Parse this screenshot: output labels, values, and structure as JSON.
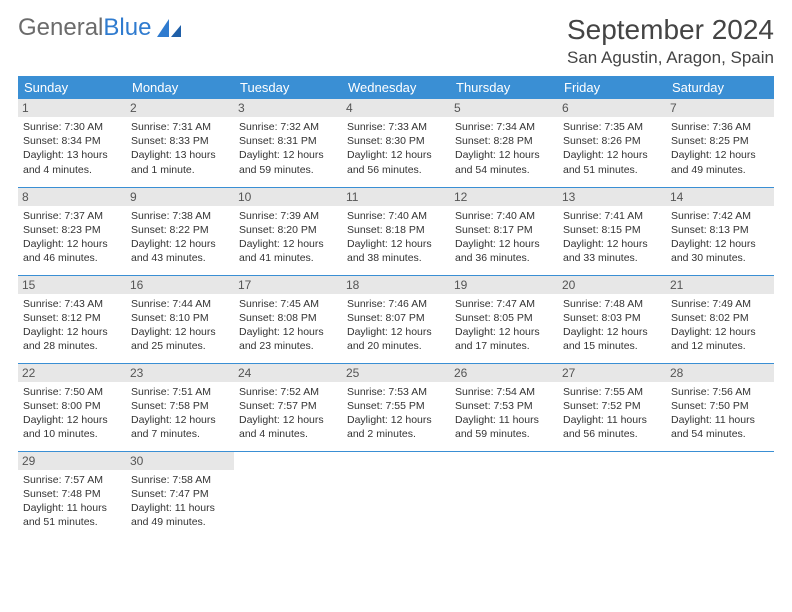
{
  "branding": {
    "text1": "General",
    "text2": "Blue"
  },
  "header": {
    "title": "September 2024",
    "location": "San Agustin, Aragon, Spain"
  },
  "colors": {
    "header_bg": "#3a8fd4",
    "header_text": "#ffffff",
    "daynum_bg": "#e7e7e7",
    "border": "#3a8fd4",
    "logo_gray": "#6b6b6b",
    "logo_blue": "#2f7bcf"
  },
  "weekdays": [
    "Sunday",
    "Monday",
    "Tuesday",
    "Wednesday",
    "Thursday",
    "Friday",
    "Saturday"
  ],
  "days": [
    {
      "n": "1",
      "sr": "Sunrise: 7:30 AM",
      "ss": "Sunset: 8:34 PM",
      "d1": "Daylight: 13 hours",
      "d2": "and 4 minutes."
    },
    {
      "n": "2",
      "sr": "Sunrise: 7:31 AM",
      "ss": "Sunset: 8:33 PM",
      "d1": "Daylight: 13 hours",
      "d2": "and 1 minute."
    },
    {
      "n": "3",
      "sr": "Sunrise: 7:32 AM",
      "ss": "Sunset: 8:31 PM",
      "d1": "Daylight: 12 hours",
      "d2": "and 59 minutes."
    },
    {
      "n": "4",
      "sr": "Sunrise: 7:33 AM",
      "ss": "Sunset: 8:30 PM",
      "d1": "Daylight: 12 hours",
      "d2": "and 56 minutes."
    },
    {
      "n": "5",
      "sr": "Sunrise: 7:34 AM",
      "ss": "Sunset: 8:28 PM",
      "d1": "Daylight: 12 hours",
      "d2": "and 54 minutes."
    },
    {
      "n": "6",
      "sr": "Sunrise: 7:35 AM",
      "ss": "Sunset: 8:26 PM",
      "d1": "Daylight: 12 hours",
      "d2": "and 51 minutes."
    },
    {
      "n": "7",
      "sr": "Sunrise: 7:36 AM",
      "ss": "Sunset: 8:25 PM",
      "d1": "Daylight: 12 hours",
      "d2": "and 49 minutes."
    },
    {
      "n": "8",
      "sr": "Sunrise: 7:37 AM",
      "ss": "Sunset: 8:23 PM",
      "d1": "Daylight: 12 hours",
      "d2": "and 46 minutes."
    },
    {
      "n": "9",
      "sr": "Sunrise: 7:38 AM",
      "ss": "Sunset: 8:22 PM",
      "d1": "Daylight: 12 hours",
      "d2": "and 43 minutes."
    },
    {
      "n": "10",
      "sr": "Sunrise: 7:39 AM",
      "ss": "Sunset: 8:20 PM",
      "d1": "Daylight: 12 hours",
      "d2": "and 41 minutes."
    },
    {
      "n": "11",
      "sr": "Sunrise: 7:40 AM",
      "ss": "Sunset: 8:18 PM",
      "d1": "Daylight: 12 hours",
      "d2": "and 38 minutes."
    },
    {
      "n": "12",
      "sr": "Sunrise: 7:40 AM",
      "ss": "Sunset: 8:17 PM",
      "d1": "Daylight: 12 hours",
      "d2": "and 36 minutes."
    },
    {
      "n": "13",
      "sr": "Sunrise: 7:41 AM",
      "ss": "Sunset: 8:15 PM",
      "d1": "Daylight: 12 hours",
      "d2": "and 33 minutes."
    },
    {
      "n": "14",
      "sr": "Sunrise: 7:42 AM",
      "ss": "Sunset: 8:13 PM",
      "d1": "Daylight: 12 hours",
      "d2": "and 30 minutes."
    },
    {
      "n": "15",
      "sr": "Sunrise: 7:43 AM",
      "ss": "Sunset: 8:12 PM",
      "d1": "Daylight: 12 hours",
      "d2": "and 28 minutes."
    },
    {
      "n": "16",
      "sr": "Sunrise: 7:44 AM",
      "ss": "Sunset: 8:10 PM",
      "d1": "Daylight: 12 hours",
      "d2": "and 25 minutes."
    },
    {
      "n": "17",
      "sr": "Sunrise: 7:45 AM",
      "ss": "Sunset: 8:08 PM",
      "d1": "Daylight: 12 hours",
      "d2": "and 23 minutes."
    },
    {
      "n": "18",
      "sr": "Sunrise: 7:46 AM",
      "ss": "Sunset: 8:07 PM",
      "d1": "Daylight: 12 hours",
      "d2": "and 20 minutes."
    },
    {
      "n": "19",
      "sr": "Sunrise: 7:47 AM",
      "ss": "Sunset: 8:05 PM",
      "d1": "Daylight: 12 hours",
      "d2": "and 17 minutes."
    },
    {
      "n": "20",
      "sr": "Sunrise: 7:48 AM",
      "ss": "Sunset: 8:03 PM",
      "d1": "Daylight: 12 hours",
      "d2": "and 15 minutes."
    },
    {
      "n": "21",
      "sr": "Sunrise: 7:49 AM",
      "ss": "Sunset: 8:02 PM",
      "d1": "Daylight: 12 hours",
      "d2": "and 12 minutes."
    },
    {
      "n": "22",
      "sr": "Sunrise: 7:50 AM",
      "ss": "Sunset: 8:00 PM",
      "d1": "Daylight: 12 hours",
      "d2": "and 10 minutes."
    },
    {
      "n": "23",
      "sr": "Sunrise: 7:51 AM",
      "ss": "Sunset: 7:58 PM",
      "d1": "Daylight: 12 hours",
      "d2": "and 7 minutes."
    },
    {
      "n": "24",
      "sr": "Sunrise: 7:52 AM",
      "ss": "Sunset: 7:57 PM",
      "d1": "Daylight: 12 hours",
      "d2": "and 4 minutes."
    },
    {
      "n": "25",
      "sr": "Sunrise: 7:53 AM",
      "ss": "Sunset: 7:55 PM",
      "d1": "Daylight: 12 hours",
      "d2": "and 2 minutes."
    },
    {
      "n": "26",
      "sr": "Sunrise: 7:54 AM",
      "ss": "Sunset: 7:53 PM",
      "d1": "Daylight: 11 hours",
      "d2": "and 59 minutes."
    },
    {
      "n": "27",
      "sr": "Sunrise: 7:55 AM",
      "ss": "Sunset: 7:52 PM",
      "d1": "Daylight: 11 hours",
      "d2": "and 56 minutes."
    },
    {
      "n": "28",
      "sr": "Sunrise: 7:56 AM",
      "ss": "Sunset: 7:50 PM",
      "d1": "Daylight: 11 hours",
      "d2": "and 54 minutes."
    },
    {
      "n": "29",
      "sr": "Sunrise: 7:57 AM",
      "ss": "Sunset: 7:48 PM",
      "d1": "Daylight: 11 hours",
      "d2": "and 51 minutes."
    },
    {
      "n": "30",
      "sr": "Sunrise: 7:58 AM",
      "ss": "Sunset: 7:47 PM",
      "d1": "Daylight: 11 hours",
      "d2": "and 49 minutes."
    }
  ]
}
